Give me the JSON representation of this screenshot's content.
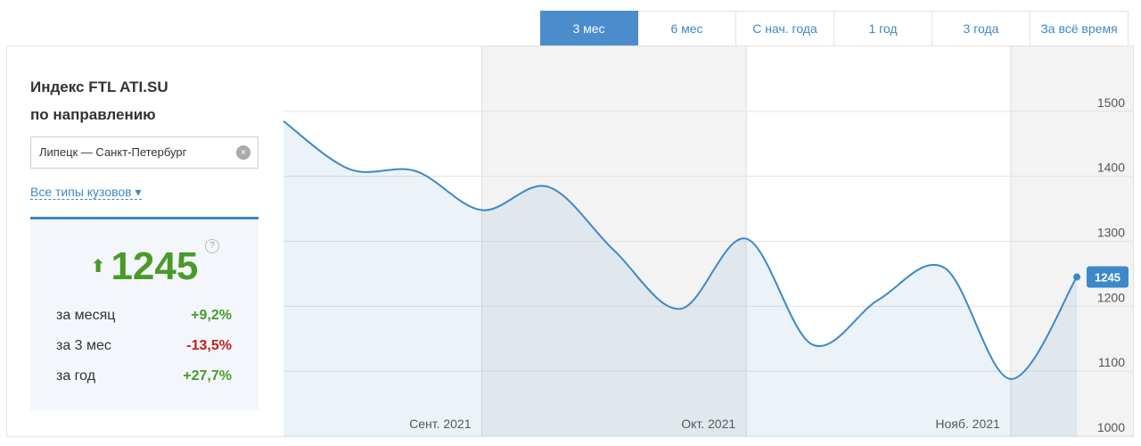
{
  "tabs": [
    {
      "label": "3 мес",
      "active": true
    },
    {
      "label": "6 мес",
      "active": false
    },
    {
      "label": "С нач. года",
      "active": false
    },
    {
      "label": "1 год",
      "active": false
    },
    {
      "label": "3 года",
      "active": false
    },
    {
      "label": "За всё время",
      "active": false
    }
  ],
  "panel": {
    "title_line1": "Индекс FTL ATI.SU",
    "title_line2": "по направлению",
    "route": "Липецк — Санкт-Петербург",
    "body_types": "Все типы кузовов",
    "help": "?",
    "stats": [
      {
        "label": "за месяц",
        "value": "+9,2%",
        "trend": "up"
      },
      {
        "label": "за 3 мес",
        "value": "-13,5%",
        "trend": "down"
      },
      {
        "label": "за год",
        "value": "+27,7%",
        "trend": "up"
      }
    ]
  },
  "chart_data": {
    "type": "line",
    "color": "#3d88c8",
    "series": [
      {
        "name": "Индекс FTL",
        "color": "#3d88c8",
        "values": [
          1485,
          1411,
          1408,
          1348,
          1384,
          1286,
          1196,
          1304,
          1141,
          1210,
          1259,
          1088,
          1245
        ]
      }
    ],
    "month_labels": [
      "Сент. 2021",
      "Окт. 2021",
      "Нояб. 2021"
    ],
    "ylim": [
      1000,
      1600
    ],
    "yticks": [
      1000,
      1100,
      1200,
      1300,
      1400,
      1500
    ],
    "grid": true
  }
}
